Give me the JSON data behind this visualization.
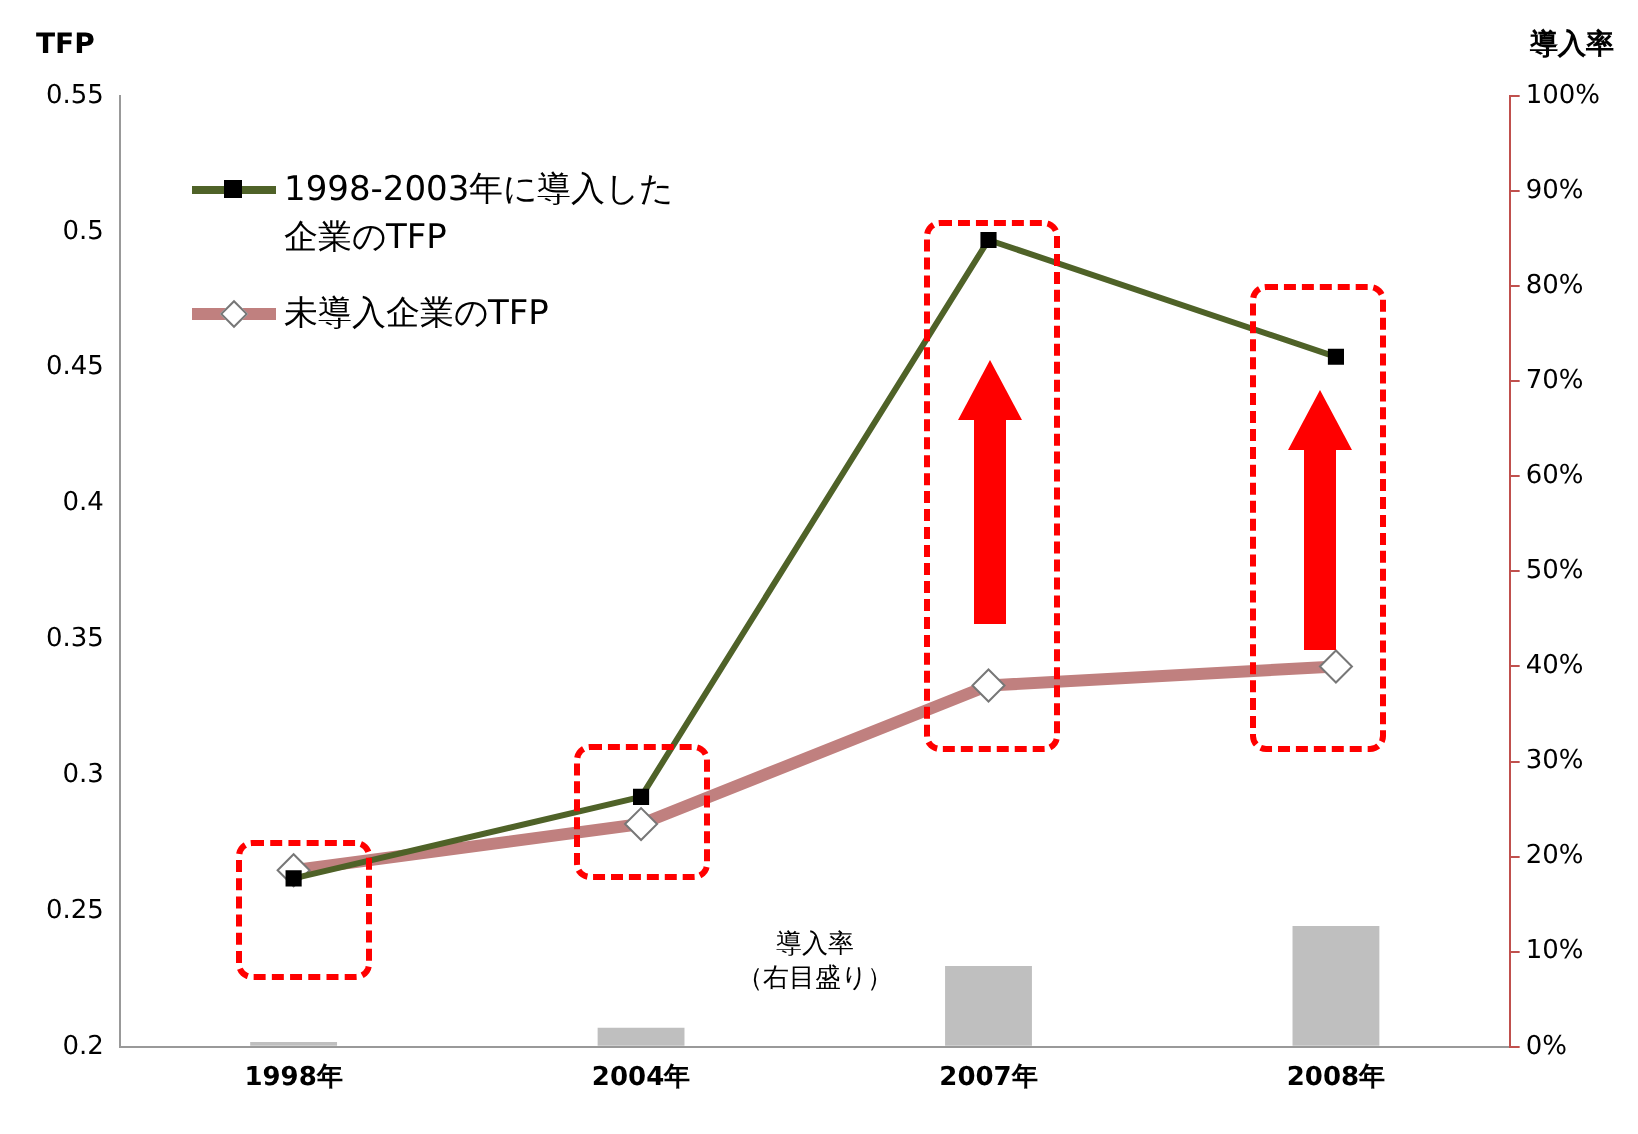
{
  "chart_data": {
    "type": "line",
    "ylabel": "TFP",
    "y2label": "導入率",
    "categories": [
      "1998年",
      "2004年",
      "2007年",
      "2008年"
    ],
    "series": [
      {
        "type": "bar",
        "axis": "y2",
        "color": "#bfbfbf",
        "values": [
          0.5,
          2,
          8.5,
          12.7
        ]
      },
      {
        "name": "1998-2003年に導入した企業のTFP",
        "color": "#4f6228",
        "marker": "square",
        "values": [
          0.262,
          0.292,
          0.497,
          0.454
        ]
      },
      {
        "name": "未導入企業のTFP",
        "color": "#c0807f",
        "marker": "diamond",
        "values": [
          0.265,
          0.282,
          0.333,
          0.34
        ]
      }
    ],
    "ylim": [
      0.2,
      0.55
    ],
    "yticks": [
      0.2,
      0.25,
      0.3,
      0.35,
      0.4,
      0.45,
      0.5,
      0.55
    ],
    "y2lim": [
      0,
      100
    ],
    "y2ticks": [
      {
        "value": 0,
        "label": "0%"
      },
      {
        "value": 10,
        "label": "10%"
      },
      {
        "value": 20,
        "label": "20%"
      },
      {
        "value": 30,
        "label": "30%"
      },
      {
        "value": 40,
        "label": "40%"
      },
      {
        "value": 50,
        "label": "50%"
      },
      {
        "value": 60,
        "label": "60%"
      },
      {
        "value": 70,
        "label": "70%"
      },
      {
        "value": 80,
        "label": "80%"
      },
      {
        "value": 90,
        "label": "90%"
      },
      {
        "value": 100,
        "label": "100%"
      }
    ],
    "annotations": [
      "導入率",
      "（右目盛り）"
    ],
    "legend": "top left",
    "grid": false
  }
}
